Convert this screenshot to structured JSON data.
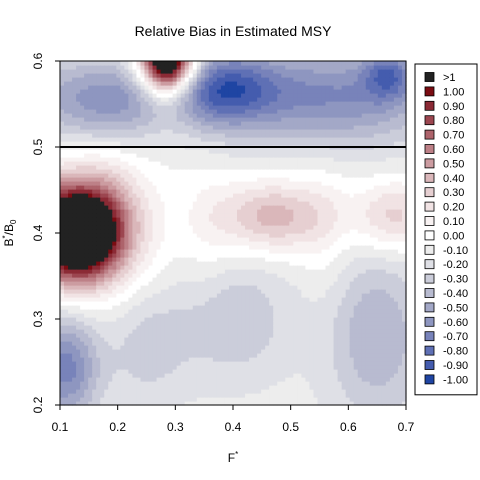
{
  "chart_data": {
    "type": "heatmap",
    "title": "Relative Bias in Estimated MSY",
    "xlabel": {
      "base": "F",
      "sup": "*"
    },
    "ylabel": {
      "base": "B",
      "sup": "*",
      "mid": "/B",
      "sub": "0"
    },
    "xlim": [
      0.1,
      0.7
    ],
    "ylim": [
      0.2,
      0.6
    ],
    "x_ticks": [
      "0.1",
      "0.2",
      "0.3",
      "0.4",
      "0.5",
      "0.6",
      "0.7"
    ],
    "y_ticks": [
      "0.2",
      "0.3",
      "0.4",
      "0.5",
      "0.6"
    ],
    "reference_line": {
      "orientation": "horizontal",
      "y": 0.5,
      "color": "#000000"
    },
    "legend": {
      "placement": "right",
      "entries": [
        {
          "label": ">1",
          "color": "#222222"
        },
        {
          "label": "1.00",
          "color": "#7a0c12"
        },
        {
          "label": "0.90",
          "color": "#8b2a35"
        },
        {
          "label": "0.80",
          "color": "#9c4650"
        },
        {
          "label": "0.70",
          "color": "#ad636b"
        },
        {
          "label": "0.60",
          "color": "#bd8087"
        },
        {
          "label": "0.50",
          "color": "#cc9ca1"
        },
        {
          "label": "0.40",
          "color": "#dab7ba"
        },
        {
          "label": "0.30",
          "color": "#e6cfd1"
        },
        {
          "label": "0.20",
          "color": "#f1e3e4"
        },
        {
          "label": "0.10",
          "color": "#f8f2f2"
        },
        {
          "label": "0.00",
          "color": "#ffffff"
        },
        {
          "label": "-0.10",
          "color": "#ededed"
        },
        {
          "label": "-0.20",
          "color": "#dfe0e6"
        },
        {
          "label": "-0.30",
          "color": "#cbcdda"
        },
        {
          "label": "-0.40",
          "color": "#b8bbd0"
        },
        {
          "label": "-0.50",
          "color": "#a3a8c7"
        },
        {
          "label": "-0.60",
          "color": "#8e96c0"
        },
        {
          "label": "-0.70",
          "color": "#7883ba"
        },
        {
          "label": "-0.80",
          "color": "#5f70b5"
        },
        {
          "label": "-0.90",
          "color": "#445cae"
        },
        {
          "label": "-1.00",
          "color": "#1f45a3"
        }
      ]
    },
    "features": [
      {
        "x": 0.13,
        "y": 0.4,
        "amp": 1.5,
        "sx": 0.05,
        "sy": 0.035,
        "note": "black >1 blob"
      },
      {
        "x": 0.13,
        "y": 0.405,
        "amp": 0.55,
        "sx": 0.09,
        "sy": 0.055
      },
      {
        "x": 0.285,
        "y": 0.6,
        "amp": 1.4,
        "sx": 0.03,
        "sy": 0.025,
        "note": "black >1 top"
      },
      {
        "x": 0.29,
        "y": 0.59,
        "amp": 0.45,
        "sx": 0.045,
        "sy": 0.05
      },
      {
        "x": 0.47,
        "y": 0.42,
        "amp": 0.5,
        "sx": 0.07,
        "sy": 0.03
      },
      {
        "x": 0.68,
        "y": 0.42,
        "amp": 0.4,
        "sx": 0.05,
        "sy": 0.03
      },
      {
        "x": 0.2,
        "y": 0.555,
        "amp": -0.55,
        "sx": 0.12,
        "sy": 0.035
      },
      {
        "x": 0.38,
        "y": 0.57,
        "amp": -0.6,
        "sx": 0.07,
        "sy": 0.03
      },
      {
        "x": 0.58,
        "y": 0.56,
        "amp": -0.55,
        "sx": 0.13,
        "sy": 0.04
      },
      {
        "x": 0.67,
        "y": 0.585,
        "amp": -0.45,
        "sx": 0.03,
        "sy": 0.02
      },
      {
        "x": 0.11,
        "y": 0.245,
        "amp": -0.6,
        "sx": 0.04,
        "sy": 0.045
      },
      {
        "x": 0.25,
        "y": 0.27,
        "amp": -0.2,
        "sx": 0.05,
        "sy": 0.05
      },
      {
        "x": 0.4,
        "y": 0.3,
        "amp": -0.25,
        "sx": 0.07,
        "sy": 0.05
      },
      {
        "x": 0.65,
        "y": 0.28,
        "amp": -0.35,
        "sx": 0.06,
        "sy": 0.07
      }
    ],
    "baseline_bias": -0.1,
    "grid": false
  }
}
